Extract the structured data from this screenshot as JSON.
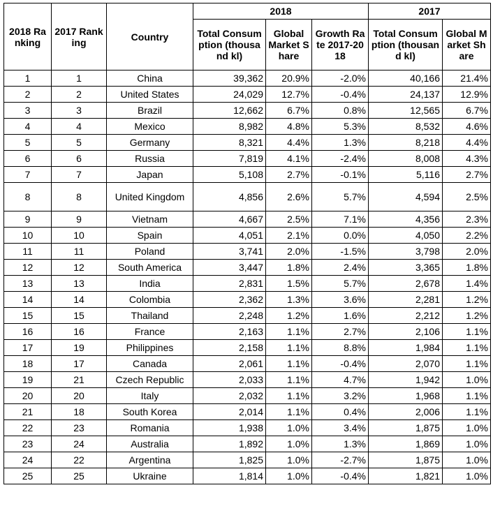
{
  "header": {
    "rank2018": "2018 Ranking",
    "rank2017": "2017 Ranking",
    "country": "Country",
    "group2018": "2018",
    "group2017": "2017",
    "total2018": "Total Consumption (thousand kl)",
    "share2018": "Global Market Share",
    "growth": "Growth Rate 2017-2018",
    "total2017": "Total Consumption (thousand kl)",
    "share2017": "Global Market Share"
  },
  "rows": [
    {
      "r18": "1",
      "r17": "1",
      "country": "China",
      "t18": "39,362",
      "s18": "20.9%",
      "g": "-2.0%",
      "t17": "40,166",
      "s17": "21.4%"
    },
    {
      "r18": "2",
      "r17": "2",
      "country": "United States",
      "t18": "24,029",
      "s18": "12.7%",
      "g": "-0.4%",
      "t17": "24,137",
      "s17": "12.9%"
    },
    {
      "r18": "3",
      "r17": "3",
      "country": "Brazil",
      "t18": "12,662",
      "s18": "6.7%",
      "g": "0.8%",
      "t17": "12,565",
      "s17": "6.7%"
    },
    {
      "r18": "4",
      "r17": "4",
      "country": "Mexico",
      "t18": "8,982",
      "s18": "4.8%",
      "g": "5.3%",
      "t17": "8,532",
      "s17": "4.6%"
    },
    {
      "r18": "5",
      "r17": "5",
      "country": "Germany",
      "t18": "8,321",
      "s18": "4.4%",
      "g": "1.3%",
      "t17": "8,218",
      "s17": "4.4%"
    },
    {
      "r18": "6",
      "r17": "6",
      "country": "Russia",
      "t18": "7,819",
      "s18": "4.1%",
      "g": "-2.4%",
      "t17": "8,008",
      "s17": "4.3%"
    },
    {
      "r18": "7",
      "r17": "7",
      "country": "Japan",
      "t18": "5,108",
      "s18": "2.7%",
      "g": "-0.1%",
      "t17": "5,116",
      "s17": "2.7%"
    },
    {
      "r18": "8",
      "r17": "8",
      "country": "United Kingdom",
      "t18": "4,856",
      "s18": "2.6%",
      "g": "5.7%",
      "t17": "4,594",
      "s17": "2.5%"
    },
    {
      "r18": "9",
      "r17": "9",
      "country": "Vietnam",
      "t18": "4,667",
      "s18": "2.5%",
      "g": "7.1%",
      "t17": "4,356",
      "s17": "2.3%"
    },
    {
      "r18": "10",
      "r17": "10",
      "country": "Spain",
      "t18": "4,051",
      "s18": "2.1%",
      "g": "0.0%",
      "t17": "4,050",
      "s17": "2.2%"
    },
    {
      "r18": "11",
      "r17": "11",
      "country": "Poland",
      "t18": "3,741",
      "s18": "2.0%",
      "g": "-1.5%",
      "t17": "3,798",
      "s17": "2.0%"
    },
    {
      "r18": "12",
      "r17": "12",
      "country": "South America",
      "t18": "3,447",
      "s18": "1.8%",
      "g": "2.4%",
      "t17": "3,365",
      "s17": "1.8%"
    },
    {
      "r18": "13",
      "r17": "13",
      "country": "India",
      "t18": "2,831",
      "s18": "1.5%",
      "g": "5.7%",
      "t17": "2,678",
      "s17": "1.4%"
    },
    {
      "r18": "14",
      "r17": "14",
      "country": "Colombia",
      "t18": "2,362",
      "s18": "1.3%",
      "g": "3.6%",
      "t17": "2,281",
      "s17": "1.2%"
    },
    {
      "r18": "15",
      "r17": "15",
      "country": "Thailand",
      "t18": "2,248",
      "s18": "1.2%",
      "g": "1.6%",
      "t17": "2,212",
      "s17": "1.2%"
    },
    {
      "r18": "16",
      "r17": "16",
      "country": "France",
      "t18": "2,163",
      "s18": "1.1%",
      "g": "2.7%",
      "t17": "2,106",
      "s17": "1.1%"
    },
    {
      "r18": "17",
      "r17": "19",
      "country": "Philippines",
      "t18": "2,158",
      "s18": "1.1%",
      "g": "8.8%",
      "t17": "1,984",
      "s17": "1.1%"
    },
    {
      "r18": "18",
      "r17": "17",
      "country": "Canada",
      "t18": "2,061",
      "s18": "1.1%",
      "g": "-0.4%",
      "t17": "2,070",
      "s17": "1.1%"
    },
    {
      "r18": "19",
      "r17": "21",
      "country": "Czech Republic",
      "t18": "2,033",
      "s18": "1.1%",
      "g": "4.7%",
      "t17": "1,942",
      "s17": "1.0%"
    },
    {
      "r18": "20",
      "r17": "20",
      "country": "Italy",
      "t18": "2,032",
      "s18": "1.1%",
      "g": "3.2%",
      "t17": "1,968",
      "s17": "1.1%"
    },
    {
      "r18": "21",
      "r17": "18",
      "country": "South Korea",
      "t18": "2,014",
      "s18": "1.1%",
      "g": "0.4%",
      "t17": "2,006",
      "s17": "1.1%"
    },
    {
      "r18": "22",
      "r17": "23",
      "country": "Romania",
      "t18": "1,938",
      "s18": "1.0%",
      "g": "3.4%",
      "t17": "1,875",
      "s17": "1.0%"
    },
    {
      "r18": "23",
      "r17": "24",
      "country": "Australia",
      "t18": "1,892",
      "s18": "1.0%",
      "g": "1.3%",
      "t17": "1,869",
      "s17": "1.0%"
    },
    {
      "r18": "24",
      "r17": "22",
      "country": "Argentina",
      "t18": "1,825",
      "s18": "1.0%",
      "g": "-2.7%",
      "t17": "1,875",
      "s17": "1.0%"
    },
    {
      "r18": "25",
      "r17": "25",
      "country": "Ukraine",
      "t18": "1,814",
      "s18": "1.0%",
      "g": "-0.4%",
      "t17": "1,821",
      "s17": "1.0%"
    }
  ]
}
